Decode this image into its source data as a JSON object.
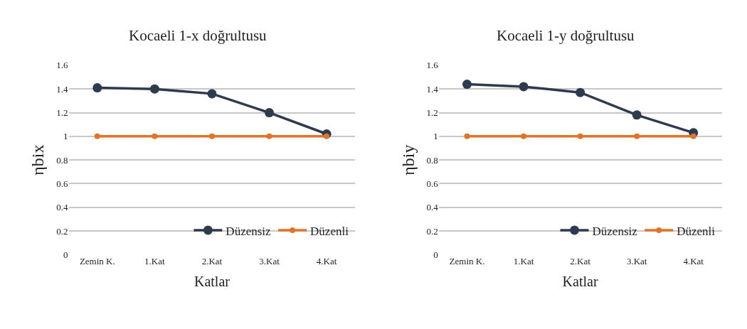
{
  "chart_data": [
    {
      "type": "line",
      "title": "Kocaeli 1-x doğrultusu",
      "xlabel": "Katlar",
      "ylabel": "ηbix",
      "categories": [
        "Zemin K.",
        "1.Kat",
        "2.Kat",
        "3.Kat",
        "4.Kat"
      ],
      "ylim": [
        0,
        1.6
      ],
      "yticks": [
        0,
        0.2,
        0.4,
        0.6,
        0.8,
        1,
        1.2,
        1.4,
        1.6
      ],
      "grid": "y",
      "legend": "bottom right",
      "marker": "circle",
      "line_style": "solid",
      "series": [
        {
          "name": "Düzensiz",
          "color": "#2e3b4e",
          "values": [
            1.41,
            1.4,
            1.36,
            1.2,
            1.02
          ]
        },
        {
          "name": "Düzenli",
          "color": "#e07428",
          "values": [
            1.0,
            1.0,
            1.0,
            1.0,
            1.0
          ]
        }
      ]
    },
    {
      "type": "line",
      "title": "Kocaeli 1-y doğrultusu",
      "xlabel": "Katlar",
      "ylabel": "ηbiy",
      "categories": [
        "Zemin K.",
        "1.Kat",
        "2.Kat",
        "3.Kat",
        "4.Kat"
      ],
      "ylim": [
        0,
        1.6
      ],
      "yticks": [
        0,
        0.2,
        0.4,
        0.6,
        0.8,
        1,
        1.2,
        1.4,
        1.6
      ],
      "grid": "y",
      "legend": "bottom right",
      "marker": "circle",
      "line_style": "solid",
      "series": [
        {
          "name": "Düzensiz",
          "color": "#2e3b4e",
          "values": [
            1.44,
            1.42,
            1.37,
            1.18,
            1.03
          ]
        },
        {
          "name": "Düzenli",
          "color": "#e07428",
          "values": [
            1.0,
            1.0,
            1.0,
            1.0,
            1.0
          ]
        }
      ]
    }
  ]
}
